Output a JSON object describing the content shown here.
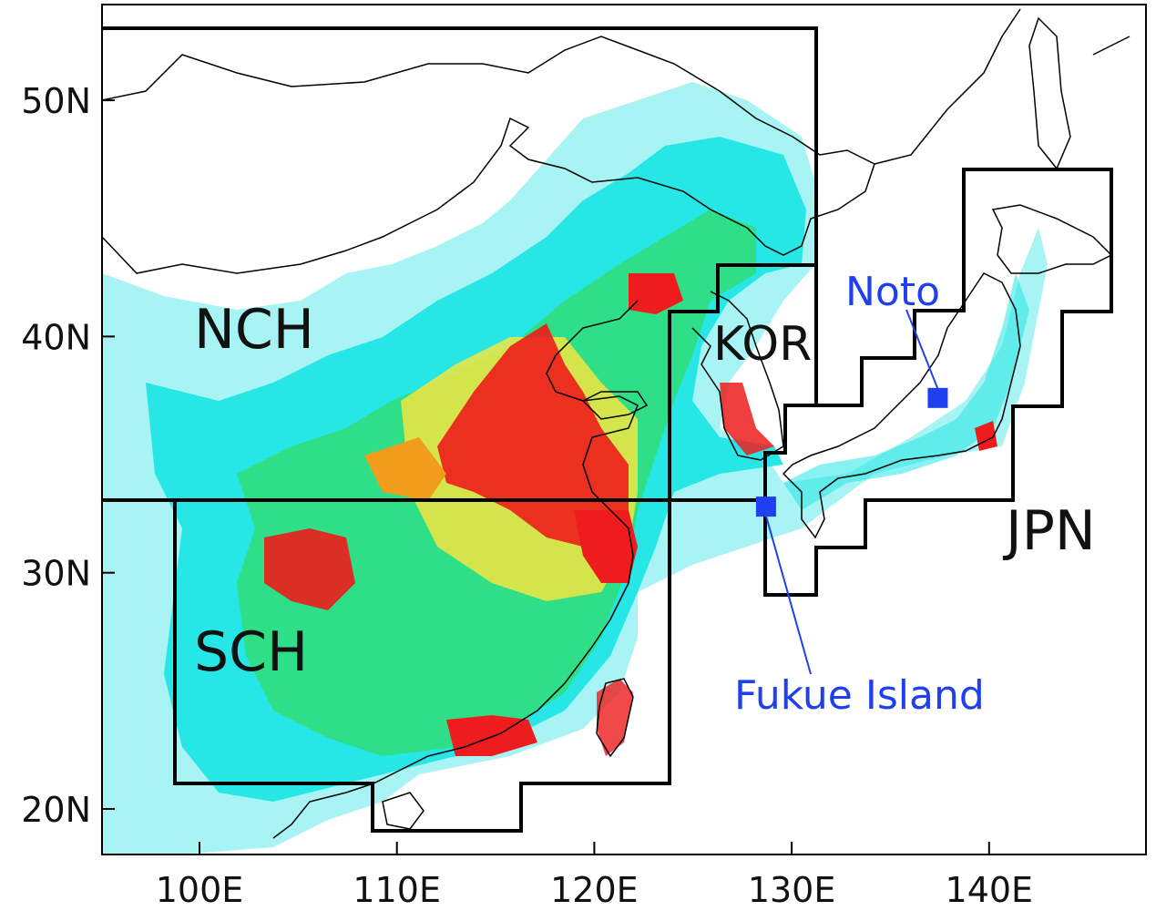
{
  "axes": {
    "lat_ticks": [
      {
        "value": 20,
        "label": "20N"
      },
      {
        "value": 30,
        "label": "30N"
      },
      {
        "value": 40,
        "label": "40N"
      },
      {
        "value": 50,
        "label": "50N"
      }
    ],
    "lon_ticks": [
      {
        "value": 100,
        "label": "100E"
      },
      {
        "value": 110,
        "label": "110E"
      },
      {
        "value": 120,
        "label": "120E"
      },
      {
        "value": 130,
        "label": "130E"
      },
      {
        "value": 140,
        "label": "140E"
      }
    ],
    "lon_range": [
      95,
      148
    ],
    "lat_range": [
      18,
      54
    ]
  },
  "regions": {
    "nch": "NCH",
    "sch": "SCH",
    "kor": "KOR",
    "jpn": "JPN"
  },
  "sites": {
    "noto": {
      "label": "Noto",
      "lon": 137.4,
      "lat": 37.4
    },
    "fukue": {
      "label": "Fukue Island",
      "lon": 128.7,
      "lat": 32.8
    }
  },
  "colors": {
    "box": "#000000",
    "site": "#1f3ff0",
    "coast": "#000000",
    "level_low": "#a8f4f4",
    "level_mid1": "#26e6e6",
    "level_mid2": "#35d93a",
    "level_high1": "#f0e640",
    "level_high2": "#f29c1c",
    "level_max": "#ee1c1c"
  }
}
